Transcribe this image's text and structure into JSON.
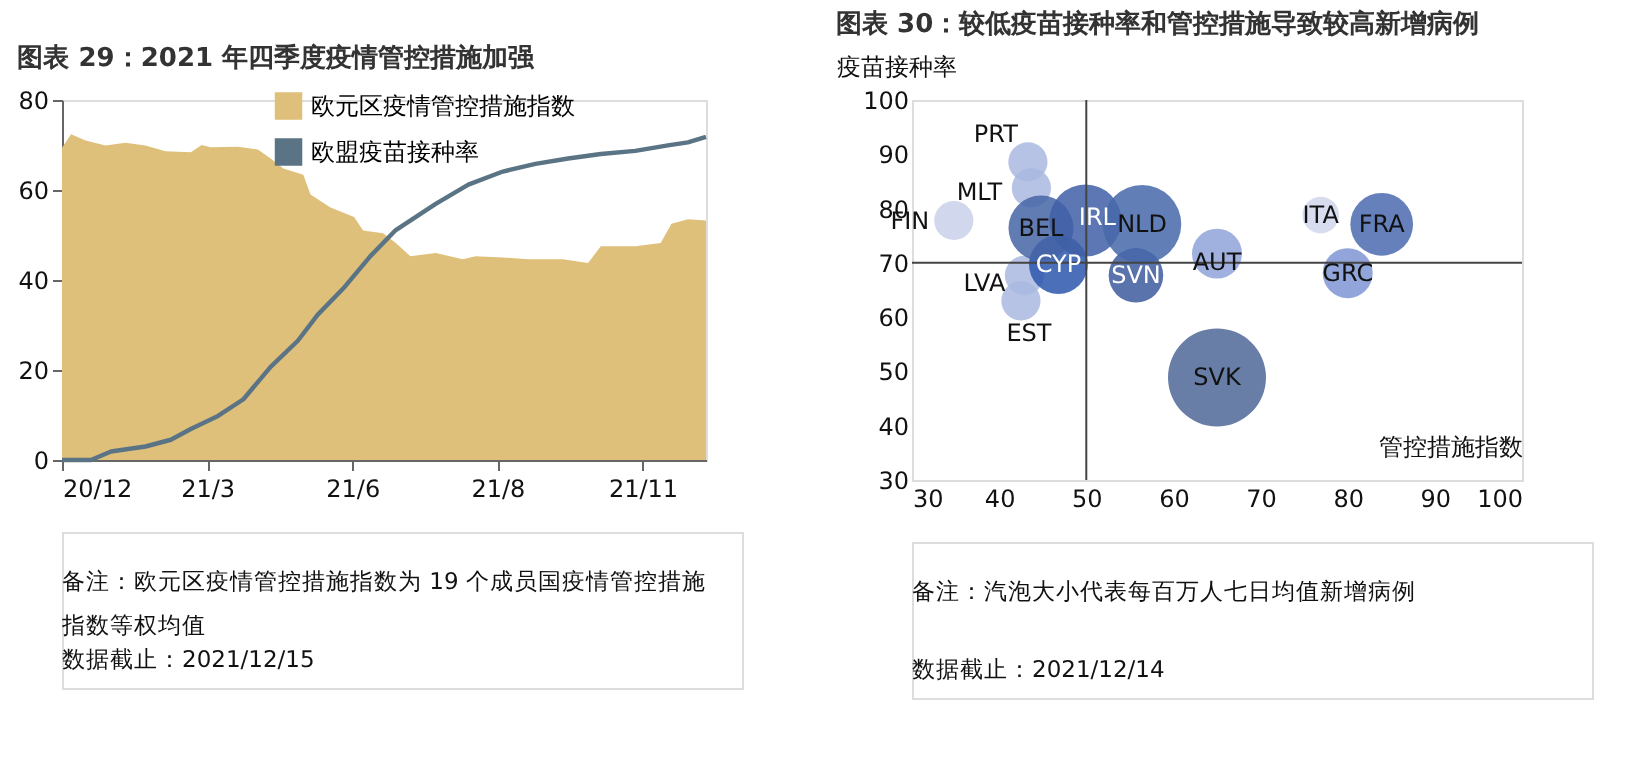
{
  "chart_data": [
    {
      "type": "area",
      "title": "图表 29：2021 年四季度疫情管控措施加强",
      "xlim": [
        "2020-12-25",
        "2021-12-15"
      ],
      "xticks": [
        {
          "value": "2020-12-25",
          "label": "20/12"
        },
        {
          "value": "2021-03-15",
          "label": "21/3"
        },
        {
          "value": "2021-06-03",
          "label": "21/6"
        },
        {
          "value": "2021-08-22",
          "label": "21/8"
        },
        {
          "value": "2021-11-10",
          "label": "21/11"
        }
      ],
      "ylim": [
        0,
        80
      ],
      "yticks": [
        0,
        20,
        40,
        60,
        80
      ],
      "grid": false,
      "legend": "top right",
      "series": [
        {
          "name": "欧元区疫情管控措施指数",
          "type": "area",
          "color": "#dfc07a",
          "x": [
            "2020-12-25",
            "2020-12-30",
            "2021-01-07",
            "2021-01-18",
            "2021-01-29",
            "2021-02-09",
            "2021-02-20",
            "2021-03-06",
            "2021-03-12",
            "2021-03-17",
            "2021-04-01",
            "2021-04-12",
            "2021-04-19",
            "2021-04-26",
            "2021-05-07",
            "2021-05-11",
            "2021-05-22",
            "2021-06-04",
            "2021-06-09",
            "2021-06-20",
            "2021-06-27",
            "2021-07-05",
            "2021-07-19",
            "2021-08-03",
            "2021-08-10",
            "2021-08-25",
            "2021-09-08",
            "2021-09-27",
            "2021-10-11",
            "2021-10-18",
            "2021-11-06",
            "2021-11-20",
            "2021-11-26",
            "2021-12-05",
            "2021-12-15"
          ],
          "values": [
            69.4,
            72.4,
            71,
            69.9,
            70.5,
            69.9,
            68.6,
            68.4,
            70,
            69.5,
            69.6,
            69,
            67,
            64.8,
            63.4,
            59,
            56.1,
            54,
            51,
            50.4,
            48.2,
            45.3,
            46,
            44.6,
            45.3,
            45,
            44.6,
            44.6,
            43.8,
            47.5,
            47.5,
            48.2,
            52.5,
            53.5,
            53.2
          ]
        },
        {
          "name": "欧盟疫苗接种率",
          "type": "line",
          "color": "#5b7485",
          "x": [
            "2020-12-25",
            "2021-01-10",
            "2021-01-21",
            "2021-02-09",
            "2021-02-23",
            "2021-03-06",
            "2021-03-21",
            "2021-04-04",
            "2021-04-19",
            "2021-05-04",
            "2021-05-15",
            "2021-05-29",
            "2021-06-13",
            "2021-06-27",
            "2021-07-19",
            "2021-08-06",
            "2021-08-25",
            "2021-09-12",
            "2021-09-30",
            "2021-10-18",
            "2021-11-06",
            "2021-11-24",
            "2021-12-05",
            "2021-12-15"
          ],
          "values": [
            0,
            0,
            1.9,
            3,
            4.5,
            6.9,
            9.8,
            13.5,
            20.7,
            26.5,
            32.3,
            38.1,
            45.3,
            51.1,
            56.9,
            61.2,
            64.1,
            65.8,
            67,
            68,
            68.7,
            69.9,
            70.6,
            71.8
          ]
        }
      ],
      "annotations": [
        "备注：欧元区疫情管控措施指数为 19 个成员国疫情管控措施指数等权均值",
        "数据截止：2021/12/15"
      ]
    },
    {
      "type": "bubble",
      "title": "图表 30：较低疫苗接种率和管控措施导致较高新增病例",
      "xlabel": "管控措施指数",
      "ylabel": "疫苗接种率",
      "xlim": [
        30,
        100
      ],
      "xticks": [
        30,
        40,
        50,
        60,
        70,
        80,
        90,
        100
      ],
      "ylim": [
        30,
        100
      ],
      "yticks": [
        30,
        40,
        50,
        60,
        70,
        80,
        90,
        100
      ],
      "grid": false,
      "legend": false,
      "ref_lines": [
        {
          "axis": "x",
          "value": 50,
          "color": "#444444"
        },
        {
          "axis": "y",
          "value": 70,
          "color": "#444444"
        }
      ],
      "series": [
        {
          "name": "FIN",
          "color": "#c9d1ea",
          "x": [
            34.8
          ],
          "values": [
            77.8
          ],
          "sizes": [
            0.16
          ]
        },
        {
          "name": "PRT",
          "color": "#a9b8e0",
          "x": [
            43.3
          ],
          "values": [
            88.6
          ],
          "sizes": [
            0.16
          ]
        },
        {
          "name": "MLT",
          "color": "#a9b8e0",
          "x": [
            43.7
          ],
          "values": [
            83.8
          ],
          "sizes": [
            0.16
          ]
        },
        {
          "name": "LVA",
          "color": "#a9b8e0",
          "x": [
            42.9
          ],
          "values": [
            67.7
          ],
          "sizes": [
            0.16
          ]
        },
        {
          "name": "EST",
          "color": "#a9b8e0",
          "x": [
            42.5
          ],
          "values": [
            63
          ],
          "sizes": [
            0.16
          ]
        },
        {
          "name": "ITA",
          "color": "#d0d6ec",
          "x": [
            76.9
          ],
          "values": [
            78.8
          ],
          "sizes": [
            0.14
          ]
        },
        {
          "name": "AUT",
          "color": "#8fa3d9",
          "x": [
            65
          ],
          "values": [
            71.7
          ],
          "sizes": [
            0.26
          ]
        },
        {
          "name": "GRC",
          "color": "#7f95d3",
          "x": [
            80
          ],
          "values": [
            68.1
          ],
          "sizes": [
            0.26
          ]
        },
        {
          "name": "BEL",
          "color": "#4564a6",
          "x": [
            44.8
          ],
          "values": [
            76.4
          ],
          "sizes": [
            0.44
          ]
        },
        {
          "name": "IRL",
          "color": "#3f5fa6",
          "x": [
            49.9
          ],
          "values": [
            77.8
          ],
          "sizes": [
            0.54
          ]
        },
        {
          "name": "NLD",
          "color": "#4767a9",
          "x": [
            56.4
          ],
          "values": [
            77.1
          ],
          "sizes": [
            0.64
          ]
        },
        {
          "name": "SVN",
          "color": "#3d5b9e",
          "x": [
            55.7
          ],
          "values": [
            67.7
          ],
          "sizes": [
            0.31
          ]
        },
        {
          "name": "CYP",
          "color": "#2c56ad",
          "x": [
            46.8
          ],
          "values": [
            69.7
          ],
          "sizes": [
            0.36
          ]
        },
        {
          "name": "FRA",
          "color": "#4a6aae",
          "x": [
            83.9
          ],
          "values": [
            77.1
          ],
          "sizes": [
            0.41
          ]
        },
        {
          "name": "SVK",
          "color": "#4d6796",
          "x": [
            65
          ],
          "values": [
            48.9
          ],
          "sizes": [
            1
          ]
        }
      ],
      "annotations": [
        "备注：汽泡大小代表每百万人七日均值新增病例",
        "数据截止：2021/12/14"
      ]
    }
  ]
}
